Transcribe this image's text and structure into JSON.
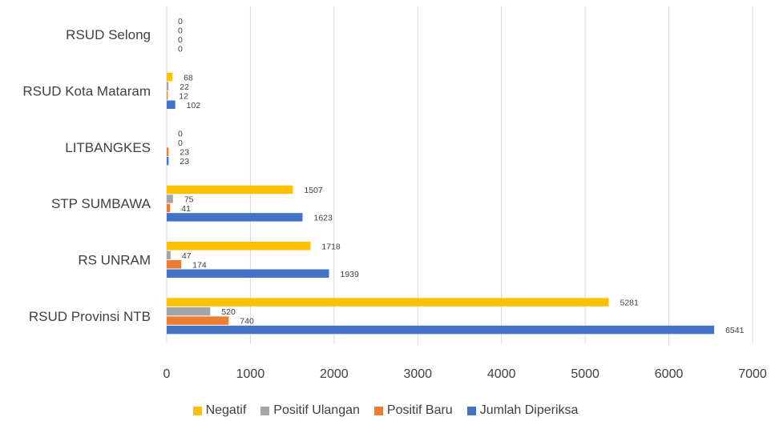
{
  "chart_data": {
    "type": "bar",
    "orientation": "horizontal",
    "categories": [
      "RSUD Selong",
      "RSUD Kota Mataram",
      "LITBANGKES",
      "STP SUMBAWA",
      "RS UNRAM",
      "RSUD Provinsi NTB"
    ],
    "series": [
      {
        "name": "Negatif",
        "color": "#FFC000",
        "values": [
          0,
          68,
          0,
          1507,
          1718,
          5281
        ]
      },
      {
        "name": "Positif Ulangan",
        "color": "#A5A5A5",
        "values": [
          0,
          22,
          0,
          75,
          47,
          520
        ]
      },
      {
        "name": "Positif Baru",
        "color": "#ED7D31",
        "values": [
          0,
          12,
          23,
          41,
          174,
          740
        ]
      },
      {
        "name": "Jumlah Diperiksa",
        "color": "#4472C4",
        "values": [
          0,
          102,
          23,
          1623,
          1939,
          6541
        ]
      }
    ],
    "xlim": [
      0,
      7000
    ],
    "xticks": [
      "0",
      "1000",
      "2000",
      "3000",
      "4000",
      "5000",
      "6000",
      "7000"
    ],
    "grid": "vertical",
    "legend_position": "bottom"
  }
}
